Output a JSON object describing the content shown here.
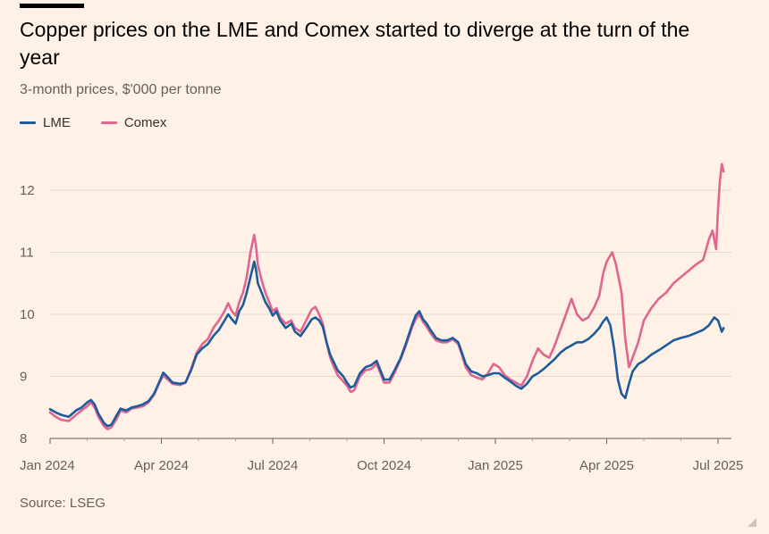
{
  "chart_data": {
    "type": "line",
    "title": "Copper prices on the LME and Comex started to diverge at the turn of the year",
    "subtitle": "3-month prices, $'000 per tonne",
    "source": "Source: LSEG",
    "xlabel": "",
    "ylabel": "$'000 per tonne",
    "ylim": [
      8,
      12.6
    ],
    "y_ticks": [
      8,
      9,
      10,
      11,
      12
    ],
    "y_tick_labels": [
      "8",
      "9",
      "10",
      "11",
      "12"
    ],
    "x_range": [
      0,
      18.2
    ],
    "x_unit": "months since Jan 2024",
    "x_ticks": [
      0,
      3,
      6,
      9,
      12,
      15,
      18
    ],
    "x_tick_labels": [
      "Jan 2024",
      "Apr 2024",
      "Jul 2024",
      "Oct 2024",
      "Jan 2025",
      "Apr 2025",
      "Jul 2025"
    ],
    "grid": true,
    "legend_position": "top-left",
    "series": [
      {
        "name": "LME",
        "color": "#1E5B9C",
        "points": [
          [
            0,
            8.47
          ],
          [
            0.15,
            8.42
          ],
          [
            0.3,
            8.38
          ],
          [
            0.5,
            8.35
          ],
          [
            0.7,
            8.45
          ],
          [
            0.85,
            8.5
          ],
          [
            1.0,
            8.58
          ],
          [
            1.1,
            8.62
          ],
          [
            1.2,
            8.55
          ],
          [
            1.3,
            8.4
          ],
          [
            1.45,
            8.25
          ],
          [
            1.55,
            8.2
          ],
          [
            1.65,
            8.22
          ],
          [
            1.8,
            8.38
          ],
          [
            1.9,
            8.48
          ],
          [
            2.05,
            8.45
          ],
          [
            2.2,
            8.5
          ],
          [
            2.35,
            8.52
          ],
          [
            2.5,
            8.55
          ],
          [
            2.65,
            8.6
          ],
          [
            2.8,
            8.72
          ],
          [
            2.95,
            8.92
          ],
          [
            3.05,
            9.06
          ],
          [
            3.15,
            9.0
          ],
          [
            3.3,
            8.9
          ],
          [
            3.5,
            8.88
          ],
          [
            3.65,
            8.9
          ],
          [
            3.8,
            9.1
          ],
          [
            3.95,
            9.35
          ],
          [
            4.1,
            9.45
          ],
          [
            4.25,
            9.52
          ],
          [
            4.4,
            9.65
          ],
          [
            4.55,
            9.75
          ],
          [
            4.7,
            9.9
          ],
          [
            4.8,
            10.0
          ],
          [
            4.9,
            9.92
          ],
          [
            5.0,
            9.85
          ],
          [
            5.1,
            10.05
          ],
          [
            5.2,
            10.15
          ],
          [
            5.3,
            10.35
          ],
          [
            5.4,
            10.6
          ],
          [
            5.5,
            10.85
          ],
          [
            5.55,
            10.72
          ],
          [
            5.6,
            10.5
          ],
          [
            5.7,
            10.35
          ],
          [
            5.8,
            10.2
          ],
          [
            5.9,
            10.1
          ],
          [
            6.0,
            9.98
          ],
          [
            6.1,
            10.05
          ],
          [
            6.2,
            9.9
          ],
          [
            6.35,
            9.78
          ],
          [
            6.5,
            9.85
          ],
          [
            6.6,
            9.72
          ],
          [
            6.75,
            9.65
          ],
          [
            6.9,
            9.78
          ],
          [
            7.05,
            9.92
          ],
          [
            7.15,
            9.95
          ],
          [
            7.25,
            9.9
          ],
          [
            7.35,
            9.8
          ],
          [
            7.45,
            9.55
          ],
          [
            7.55,
            9.35
          ],
          [
            7.65,
            9.22
          ],
          [
            7.75,
            9.1
          ],
          [
            7.9,
            9.0
          ],
          [
            8.0,
            8.9
          ],
          [
            8.1,
            8.82
          ],
          [
            8.2,
            8.85
          ],
          [
            8.35,
            9.05
          ],
          [
            8.5,
            9.15
          ],
          [
            8.65,
            9.18
          ],
          [
            8.8,
            9.25
          ],
          [
            8.9,
            9.1
          ],
          [
            9.0,
            8.95
          ],
          [
            9.15,
            8.95
          ],
          [
            9.3,
            9.12
          ],
          [
            9.45,
            9.3
          ],
          [
            9.6,
            9.55
          ],
          [
            9.75,
            9.82
          ],
          [
            9.85,
            9.98
          ],
          [
            9.95,
            10.05
          ],
          [
            10.05,
            9.92
          ],
          [
            10.15,
            9.85
          ],
          [
            10.25,
            9.75
          ],
          [
            10.4,
            9.62
          ],
          [
            10.55,
            9.58
          ],
          [
            10.7,
            9.58
          ],
          [
            10.85,
            9.62
          ],
          [
            11.0,
            9.55
          ],
          [
            11.1,
            9.38
          ],
          [
            11.2,
            9.2
          ],
          [
            11.35,
            9.08
          ],
          [
            11.5,
            9.05
          ],
          [
            11.65,
            9.0
          ],
          [
            11.8,
            9.02
          ],
          [
            11.95,
            9.05
          ],
          [
            12.1,
            9.05
          ],
          [
            12.25,
            8.98
          ],
          [
            12.4,
            8.92
          ],
          [
            12.55,
            8.85
          ],
          [
            12.7,
            8.8
          ],
          [
            12.85,
            8.88
          ],
          [
            13.0,
            9.0
          ],
          [
            13.15,
            9.05
          ],
          [
            13.3,
            9.12
          ],
          [
            13.45,
            9.2
          ],
          [
            13.6,
            9.28
          ],
          [
            13.75,
            9.38
          ],
          [
            13.9,
            9.45
          ],
          [
            14.05,
            9.5
          ],
          [
            14.2,
            9.55
          ],
          [
            14.35,
            9.55
          ],
          [
            14.5,
            9.6
          ],
          [
            14.65,
            9.68
          ],
          [
            14.8,
            9.78
          ],
          [
            14.9,
            9.88
          ],
          [
            15.0,
            9.95
          ],
          [
            15.1,
            9.82
          ],
          [
            15.2,
            9.45
          ],
          [
            15.3,
            8.95
          ],
          [
            15.4,
            8.72
          ],
          [
            15.5,
            8.65
          ],
          [
            15.6,
            8.88
          ],
          [
            15.7,
            9.08
          ],
          [
            15.85,
            9.2
          ],
          [
            16.0,
            9.25
          ],
          [
            16.2,
            9.35
          ],
          [
            16.4,
            9.42
          ],
          [
            16.6,
            9.5
          ],
          [
            16.8,
            9.58
          ],
          [
            17.0,
            9.62
          ],
          [
            17.2,
            9.65
          ],
          [
            17.4,
            9.7
          ],
          [
            17.6,
            9.75
          ],
          [
            17.75,
            9.82
          ],
          [
            17.9,
            9.95
          ],
          [
            18.0,
            9.9
          ],
          [
            18.1,
            9.72
          ],
          [
            18.15,
            9.78
          ]
        ]
      },
      {
        "name": "Comex",
        "color": "#E0668F",
        "points": [
          [
            0,
            8.42
          ],
          [
            0.15,
            8.35
          ],
          [
            0.3,
            8.3
          ],
          [
            0.5,
            8.28
          ],
          [
            0.7,
            8.38
          ],
          [
            0.85,
            8.45
          ],
          [
            1.0,
            8.52
          ],
          [
            1.1,
            8.58
          ],
          [
            1.2,
            8.5
          ],
          [
            1.3,
            8.35
          ],
          [
            1.45,
            8.2
          ],
          [
            1.55,
            8.15
          ],
          [
            1.65,
            8.18
          ],
          [
            1.8,
            8.32
          ],
          [
            1.9,
            8.45
          ],
          [
            2.05,
            8.42
          ],
          [
            2.2,
            8.48
          ],
          [
            2.35,
            8.5
          ],
          [
            2.5,
            8.52
          ],
          [
            2.65,
            8.58
          ],
          [
            2.8,
            8.7
          ],
          [
            2.95,
            8.9
          ],
          [
            3.05,
            9.02
          ],
          [
            3.15,
            8.96
          ],
          [
            3.3,
            8.88
          ],
          [
            3.5,
            8.86
          ],
          [
            3.65,
            8.9
          ],
          [
            3.8,
            9.12
          ],
          [
            3.95,
            9.38
          ],
          [
            4.1,
            9.52
          ],
          [
            4.25,
            9.6
          ],
          [
            4.4,
            9.78
          ],
          [
            4.55,
            9.9
          ],
          [
            4.7,
            10.05
          ],
          [
            4.8,
            10.18
          ],
          [
            4.9,
            10.05
          ],
          [
            5.0,
            9.98
          ],
          [
            5.1,
            10.2
          ],
          [
            5.2,
            10.35
          ],
          [
            5.3,
            10.6
          ],
          [
            5.4,
            11.0
          ],
          [
            5.5,
            11.28
          ],
          [
            5.55,
            11.1
          ],
          [
            5.6,
            10.8
          ],
          [
            5.7,
            10.55
          ],
          [
            5.8,
            10.35
          ],
          [
            5.9,
            10.2
          ],
          [
            6.0,
            10.05
          ],
          [
            6.1,
            10.1
          ],
          [
            6.2,
            9.95
          ],
          [
            6.35,
            9.85
          ],
          [
            6.5,
            9.9
          ],
          [
            6.6,
            9.78
          ],
          [
            6.75,
            9.72
          ],
          [
            6.9,
            9.9
          ],
          [
            7.05,
            10.08
          ],
          [
            7.15,
            10.12
          ],
          [
            7.25,
            10.0
          ],
          [
            7.35,
            9.85
          ],
          [
            7.45,
            9.55
          ],
          [
            7.55,
            9.3
          ],
          [
            7.65,
            9.15
          ],
          [
            7.75,
            9.02
          ],
          [
            7.9,
            8.92
          ],
          [
            8.0,
            8.85
          ],
          [
            8.1,
            8.75
          ],
          [
            8.2,
            8.78
          ],
          [
            8.35,
            9.0
          ],
          [
            8.5,
            9.1
          ],
          [
            8.65,
            9.12
          ],
          [
            8.8,
            9.2
          ],
          [
            8.9,
            9.05
          ],
          [
            9.0,
            8.9
          ],
          [
            9.15,
            8.9
          ],
          [
            9.3,
            9.08
          ],
          [
            9.45,
            9.28
          ],
          [
            9.6,
            9.52
          ],
          [
            9.75,
            9.78
          ],
          [
            9.85,
            9.92
          ],
          [
            9.95,
            10.0
          ],
          [
            10.05,
            9.88
          ],
          [
            10.15,
            9.8
          ],
          [
            10.25,
            9.7
          ],
          [
            10.4,
            9.58
          ],
          [
            10.55,
            9.55
          ],
          [
            10.7,
            9.55
          ],
          [
            10.85,
            9.6
          ],
          [
            11.0,
            9.52
          ],
          [
            11.1,
            9.35
          ],
          [
            11.2,
            9.15
          ],
          [
            11.35,
            9.02
          ],
          [
            11.5,
            8.98
          ],
          [
            11.65,
            8.95
          ],
          [
            11.8,
            9.05
          ],
          [
            11.95,
            9.2
          ],
          [
            12.1,
            9.15
          ],
          [
            12.25,
            9.02
          ],
          [
            12.4,
            8.95
          ],
          [
            12.55,
            8.9
          ],
          [
            12.7,
            8.85
          ],
          [
            12.85,
            9.0
          ],
          [
            13.0,
            9.25
          ],
          [
            13.15,
            9.45
          ],
          [
            13.3,
            9.35
          ],
          [
            13.45,
            9.3
          ],
          [
            13.6,
            9.5
          ],
          [
            13.75,
            9.75
          ],
          [
            13.9,
            10.0
          ],
          [
            14.05,
            10.25
          ],
          [
            14.2,
            10.0
          ],
          [
            14.35,
            9.9
          ],
          [
            14.5,
            9.95
          ],
          [
            14.65,
            10.1
          ],
          [
            14.8,
            10.3
          ],
          [
            14.9,
            10.65
          ],
          [
            15.0,
            10.85
          ],
          [
            15.1,
            10.95
          ],
          [
            15.15,
            11.0
          ],
          [
            15.25,
            10.8
          ],
          [
            15.4,
            10.35
          ],
          [
            15.5,
            9.6
          ],
          [
            15.6,
            9.15
          ],
          [
            15.7,
            9.3
          ],
          [
            15.85,
            9.55
          ],
          [
            16.0,
            9.9
          ],
          [
            16.2,
            10.1
          ],
          [
            16.4,
            10.25
          ],
          [
            16.6,
            10.35
          ],
          [
            16.8,
            10.5
          ],
          [
            17.0,
            10.6
          ],
          [
            17.2,
            10.7
          ],
          [
            17.4,
            10.8
          ],
          [
            17.6,
            10.88
          ],
          [
            17.75,
            11.2
          ],
          [
            17.85,
            11.35
          ],
          [
            17.95,
            11.05
          ],
          [
            18.0,
            11.7
          ],
          [
            18.05,
            12.15
          ],
          [
            18.1,
            12.42
          ],
          [
            18.15,
            12.3
          ]
        ]
      }
    ]
  }
}
